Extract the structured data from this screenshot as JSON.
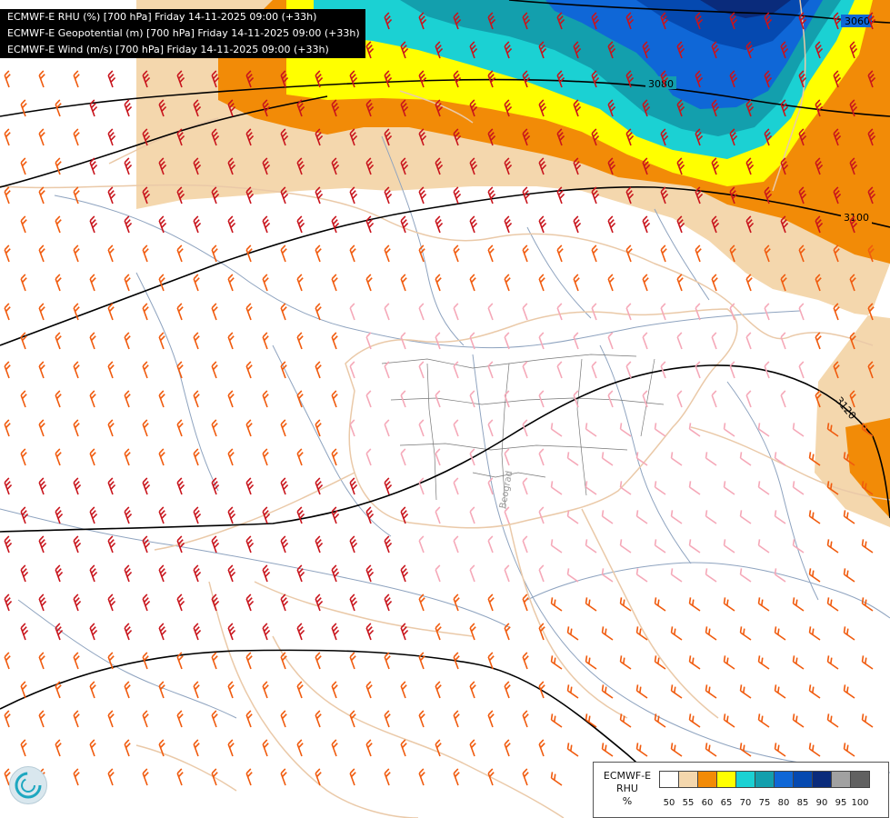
{
  "header": {
    "line1": "ECMWF-E RHU (%) [700 hPa] Friday 14-11-2025 09:00 (+33h)",
    "line2": "ECMWF-E Geopotential (m) [700 hPa] Friday 14-11-2025 09:00 (+33h)",
    "line3": "ECMWF-E Wind (m/s) [700 hPa] Friday 14-11-2025 09:00 (+33h)"
  },
  "map": {
    "contour_labels": [
      "3060",
      "3080",
      "3100",
      "3120"
    ],
    "place_label": "Beograd",
    "colors": {
      "rhu_50": "#ffffff",
      "rhu_55": "#f4d7ad",
      "rhu_60": "#f28b07",
      "rhu_65": "#ffff00",
      "rhu_70": "#1bd1d3",
      "rhu_75": "#139fad",
      "rhu_80": "#0f67d7",
      "rhu_85": "#0549b0",
      "rhu_90": "#0a2b7b",
      "rhu_95": "#a1a1a1",
      "rhu_100": "#616161",
      "border": "#eac9a8",
      "river": "#8ea3bf",
      "contour": "#000000",
      "barb_pink": "#f5a8b8",
      "barb_orange": "#f05a0d",
      "barb_red": "#c8141c"
    }
  },
  "legend": {
    "title_line1": "ECMWF-E",
    "title_line2": "RHU",
    "unit": "%",
    "labels": [
      "50",
      "55",
      "60",
      "65",
      "70",
      "75",
      "80",
      "85",
      "90",
      "95",
      "100"
    ]
  }
}
